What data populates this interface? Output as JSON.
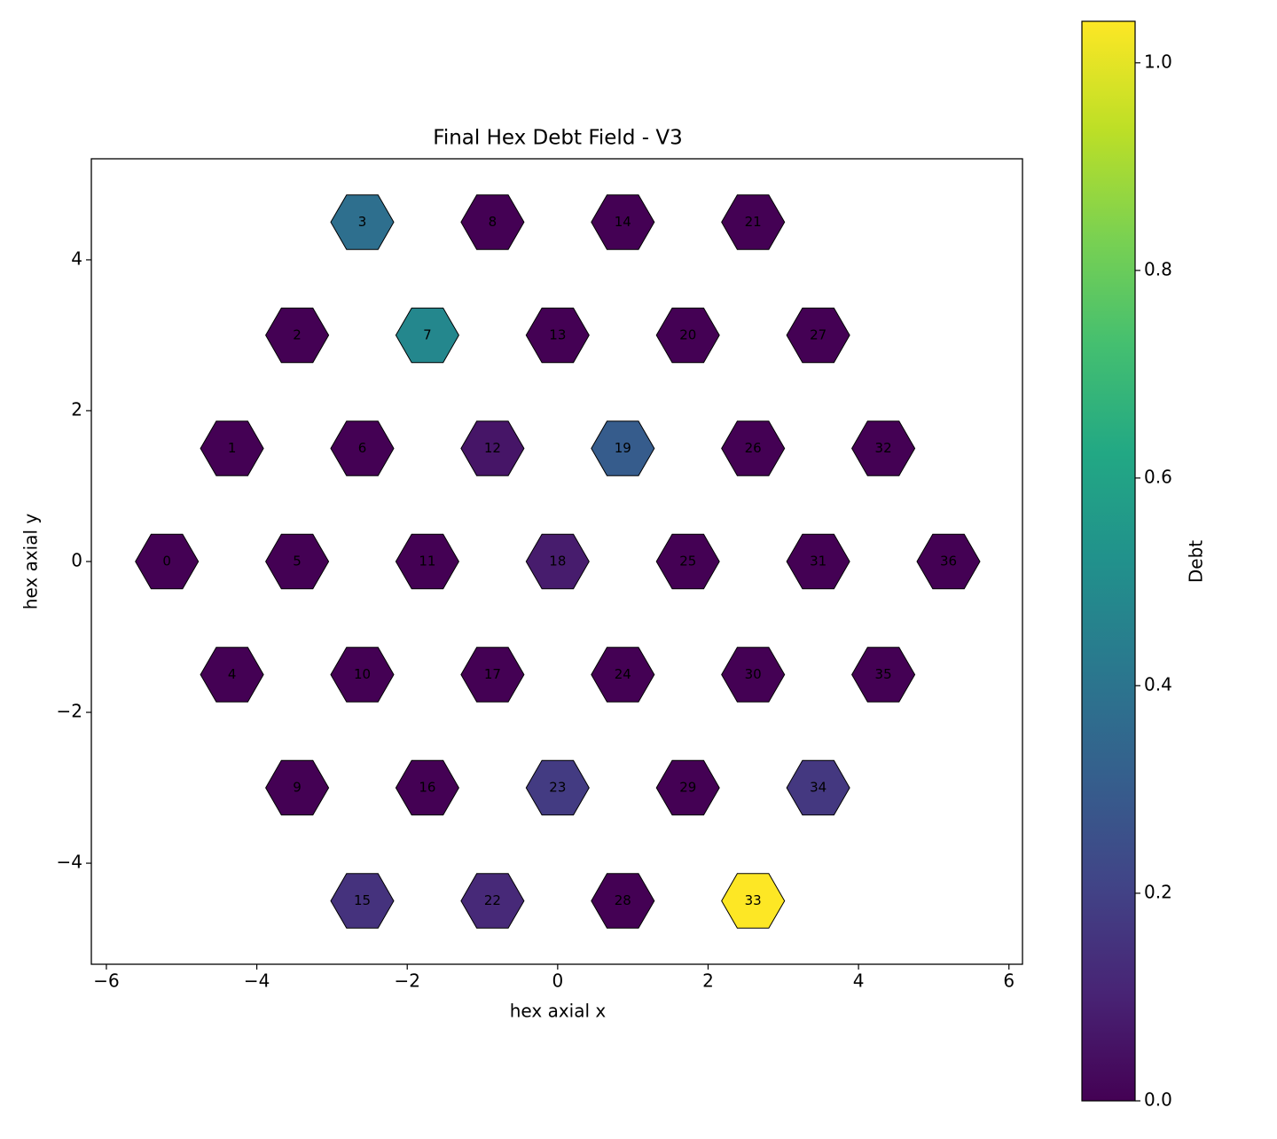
{
  "chart_data": {
    "type": "hexmap",
    "title": "Final Hex Debt Field - V3",
    "x_label": "hex axial x",
    "y_label": "hex axial y",
    "colorbar_label": "Debt",
    "colormap": "viridis",
    "clim": [
      0,
      1.04
    ],
    "colorbar_ticks": [
      {
        "value": 0,
        "label": "0.0"
      },
      0.2,
      0.4,
      0.6,
      0.8,
      {
        "value": 1,
        "label": "1.0"
      }
    ],
    "xlim": [
      -6.2,
      6.18
    ],
    "ylim": [
      -5.34,
      5.34
    ],
    "xticks": [
      {
        "value": -6,
        "label": "−6"
      },
      {
        "value": -4,
        "label": "−4"
      },
      {
        "value": -2,
        "label": "−2"
      },
      0,
      2,
      4,
      6
    ],
    "yticks": [
      {
        "value": -4,
        "label": "−4"
      },
      {
        "value": -2,
        "label": "−2"
      },
      0,
      2,
      4
    ],
    "ids": [
      0,
      1,
      2,
      3,
      4,
      5,
      6,
      7,
      8,
      9,
      10,
      11,
      12,
      13,
      14,
      15,
      16,
      17,
      18,
      19,
      20,
      21,
      22,
      23,
      24,
      25,
      26,
      27,
      28,
      29,
      30,
      31,
      32,
      33,
      34,
      35,
      36
    ],
    "x": [
      -5.196,
      -4.33,
      -3.464,
      -2.598,
      -4.33,
      -3.464,
      -2.598,
      -1.732,
      -0.866,
      -3.464,
      -2.598,
      -1.732,
      -0.866,
      0,
      0.866,
      -2.598,
      -1.732,
      -0.866,
      0,
      0.866,
      1.732,
      2.598,
      -0.866,
      0,
      0.866,
      1.732,
      2.598,
      3.464,
      0.866,
      1.732,
      2.598,
      3.464,
      4.33,
      2.598,
      3.464,
      4.33,
      5.196
    ],
    "y": [
      0,
      1.5,
      3,
      4.5,
      -1.5,
      0,
      1.5,
      3,
      4.5,
      -3,
      -1.5,
      0,
      1.5,
      3,
      4.5,
      -4.5,
      -3,
      -1.5,
      0,
      1.5,
      3,
      4.5,
      -4.5,
      -3,
      -1.5,
      0,
      1.5,
      3,
      -4.5,
      -3,
      -1.5,
      0,
      1.5,
      -4.5,
      -3,
      -1.5,
      0
    ],
    "values": [
      0,
      0,
      0,
      0.38,
      0,
      0,
      0,
      0.48,
      0,
      0,
      0,
      0,
      0.06,
      0,
      0,
      0.15,
      0,
      0,
      0.08,
      0.3,
      0,
      0,
      0.12,
      0.18,
      0,
      0,
      0,
      0,
      0,
      0,
      0,
      0,
      0,
      1.04,
      0.17,
      0,
      0
    ]
  }
}
